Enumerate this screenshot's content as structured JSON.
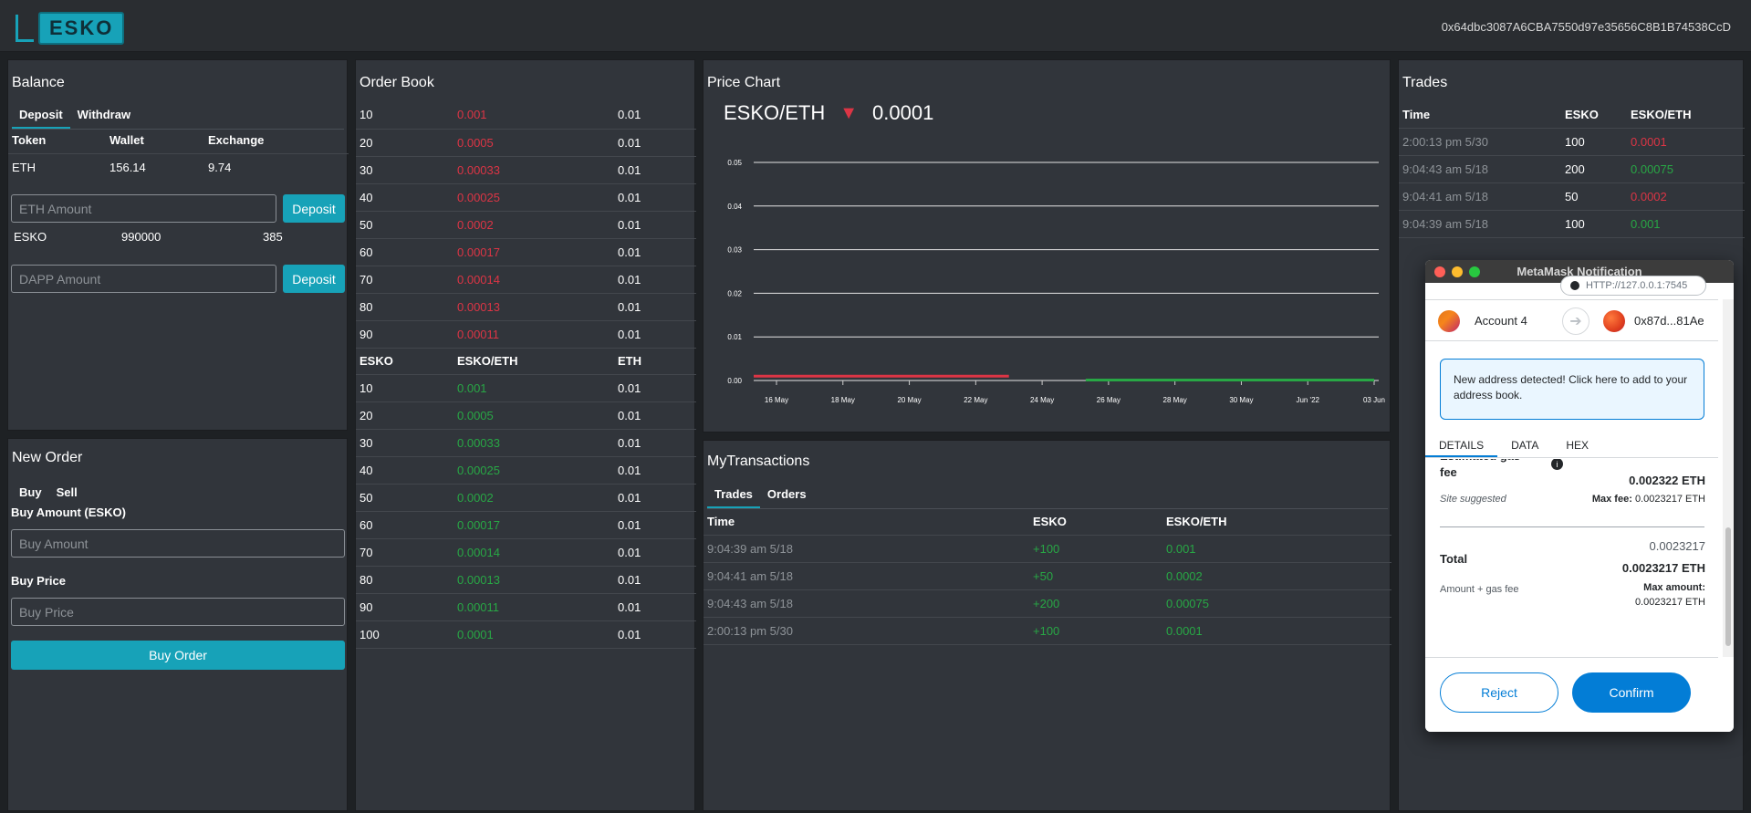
{
  "header": {
    "logo_text": "ESKO",
    "account": "0x64dbc3087A6CBA7550d97e35656C8B1B74538CcD"
  },
  "balance": {
    "title": "Balance",
    "tabs": [
      "Deposit",
      "Withdraw"
    ],
    "columns": [
      "Token",
      "Wallet",
      "Exchange"
    ],
    "eth": {
      "token": "ETH",
      "wallet": "156.14",
      "exchange": "9.74"
    },
    "eth_placeholder": "ETH Amount",
    "esko": {
      "token": "ESKO",
      "wallet": "990000",
      "exchange": "385"
    },
    "dapp_placeholder": "DAPP Amount",
    "deposit_label": "Deposit"
  },
  "new_order": {
    "title": "New Order",
    "tabs": [
      "Buy",
      "Sell"
    ],
    "amount_label": "Buy Amount (ESKO)",
    "amount_placeholder": "Buy Amount",
    "price_label": "Buy Price",
    "price_placeholder": "Buy Price",
    "submit_label": "Buy Order"
  },
  "order_book": {
    "title": "Order Book",
    "sell_orders": [
      {
        "amount": "10",
        "price": "0.001",
        "total": "0.01"
      },
      {
        "amount": "20",
        "price": "0.0005",
        "total": "0.01"
      },
      {
        "amount": "30",
        "price": "0.00033",
        "total": "0.01"
      },
      {
        "amount": "40",
        "price": "0.00025",
        "total": "0.01"
      },
      {
        "amount": "50",
        "price": "0.0002",
        "total": "0.01"
      },
      {
        "amount": "60",
        "price": "0.00017",
        "total": "0.01"
      },
      {
        "amount": "70",
        "price": "0.00014",
        "total": "0.01"
      },
      {
        "amount": "80",
        "price": "0.00013",
        "total": "0.01"
      },
      {
        "amount": "90",
        "price": "0.00011",
        "total": "0.01"
      }
    ],
    "columns": [
      "ESKO",
      "ESKO/ETH",
      "ETH"
    ],
    "buy_orders": [
      {
        "amount": "10",
        "price": "0.001",
        "total": "0.01"
      },
      {
        "amount": "20",
        "price": "0.0005",
        "total": "0.01"
      },
      {
        "amount": "30",
        "price": "0.00033",
        "total": "0.01"
      },
      {
        "amount": "40",
        "price": "0.00025",
        "total": "0.01"
      },
      {
        "amount": "50",
        "price": "0.0002",
        "total": "0.01"
      },
      {
        "amount": "60",
        "price": "0.00017",
        "total": "0.01"
      },
      {
        "amount": "70",
        "price": "0.00014",
        "total": "0.01"
      },
      {
        "amount": "80",
        "price": "0.00013",
        "total": "0.01"
      },
      {
        "amount": "90",
        "price": "0.00011",
        "total": "0.01"
      },
      {
        "amount": "100",
        "price": "0.0001",
        "total": "0.01"
      }
    ]
  },
  "price_chart": {
    "title": "Price Chart",
    "pair": "ESKO/ETH",
    "arrow": "▼",
    "last_price": "0.0001"
  },
  "chart_data": {
    "type": "line",
    "title": "",
    "y_ticks": [
      "0.05",
      "0.04",
      "0.03",
      "0.02",
      "0.01",
      "0.00"
    ],
    "ylim": [
      0,
      0.05
    ],
    "x_ticks": [
      "16 May",
      "18 May",
      "20 May",
      "22 May",
      "24 May",
      "26 May",
      "28 May",
      "30 May",
      "Jun '22",
      "03 Jun"
    ],
    "series": [
      {
        "name": "down",
        "color": "#dc3545",
        "x_start": "16 May",
        "x_end": "23 May",
        "value": 0.001
      },
      {
        "name": "up",
        "color": "#28a745",
        "x_start": "26 May",
        "x_end": "03 Jun",
        "value": 0.0001
      }
    ]
  },
  "my_transactions": {
    "title": "MyTransactions",
    "tabs": [
      "Trades",
      "Orders"
    ],
    "columns": [
      "Time",
      "ESKO",
      "ESKO/ETH"
    ],
    "rows": [
      {
        "time": "9:04:39 am 5/18",
        "esko": "+100",
        "price": "0.001"
      },
      {
        "time": "9:04:41 am 5/18",
        "esko": "+50",
        "price": "0.0002"
      },
      {
        "time": "9:04:43 am 5/18",
        "esko": "+200",
        "price": "0.00075"
      },
      {
        "time": "2:00:13 pm 5/30",
        "esko": "+100",
        "price": "0.0001"
      }
    ]
  },
  "trades": {
    "title": "Trades",
    "columns": [
      "Time",
      "ESKO",
      "ESKO/ETH"
    ],
    "rows": [
      {
        "time": "2:00:13 pm 5/30",
        "esko": "100",
        "price": "0.0001",
        "color": "#dc3545"
      },
      {
        "time": "9:04:43 am 5/18",
        "esko": "200",
        "price": "0.00075",
        "color": "#28a745"
      },
      {
        "time": "9:04:41 am 5/18",
        "esko": "50",
        "price": "0.0002",
        "color": "#dc3545"
      },
      {
        "time": "9:04:39 am 5/18",
        "esko": "100",
        "price": "0.001",
        "color": "#28a745"
      }
    ]
  },
  "metamask": {
    "window_title": "MetaMask Notification",
    "network_url": "HTTP://127.0.0.1:7545",
    "from_account": "Account 4",
    "to_account": "0x87d...81Ae",
    "notice": "New address detected! Click here to add to your address book.",
    "tabs": [
      "DETAILS",
      "DATA",
      "HEX"
    ],
    "gas_label": "Estimated gas fee",
    "gas_value": "0.002322 ETH",
    "site_suggested": "Site suggested",
    "max_fee_label": "Max fee:",
    "max_fee_value": "0.0023217 ETH",
    "total_label": "Total",
    "total_small": "0.0023217",
    "total_value": "0.0023217 ETH",
    "amount_gas_label": "Amount + gas fee",
    "max_amount_label": "Max amount:",
    "max_amount_value": "0.0023217 ETH",
    "reject_label": "Reject",
    "confirm_label": "Confirm"
  }
}
